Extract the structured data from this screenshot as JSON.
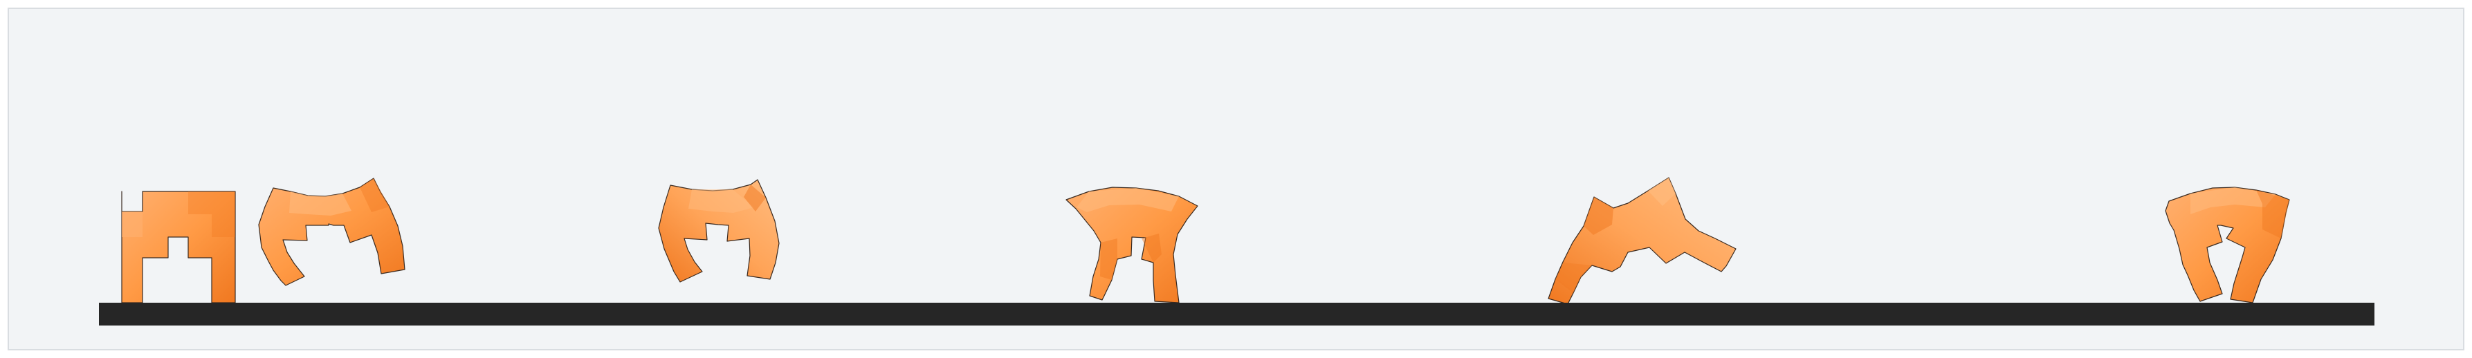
{
  "scene": {
    "background_color": "#f2f4f6",
    "frame_border_color": "#d9dde1",
    "ground_color": "#262626",
    "walker_colors": {
      "base": "#ff9a45",
      "light": "#ffb070",
      "dark": "#f07820",
      "outline": "#3a2a20"
    },
    "walker_count": 6,
    "walker_icons": [
      "walker-pose-1-icon",
      "walker-pose-2-icon",
      "walker-pose-3-icon",
      "walker-pose-4-icon",
      "walker-pose-5-icon",
      "walker-pose-6-icon"
    ]
  }
}
